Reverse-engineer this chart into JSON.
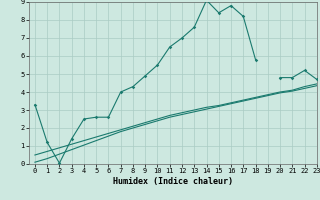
{
  "xlabel": "Humidex (Indice chaleur)",
  "background_color": "#cde8e0",
  "grid_color": "#aaccC4",
  "line_color": "#1a7a6e",
  "line1_x": [
    0,
    1,
    2,
    3,
    4,
    5,
    6,
    7,
    8,
    9,
    10,
    11,
    12,
    13,
    14,
    15,
    16,
    17,
    18,
    19,
    20,
    21,
    22,
    23
  ],
  "line1_y": [
    3.3,
    1.2,
    0.05,
    1.4,
    2.5,
    2.6,
    2.6,
    4.0,
    4.3,
    4.9,
    5.5,
    6.5,
    7.0,
    7.6,
    9.1,
    8.4,
    8.8,
    8.2,
    5.8,
    null,
    4.8,
    4.8,
    5.2,
    4.7
  ],
  "line2_x": [
    0,
    1,
    2,
    3,
    4,
    5,
    6,
    7,
    8,
    9,
    10,
    11,
    12,
    13,
    14,
    15,
    16,
    17,
    18,
    19,
    20,
    21,
    22,
    23
  ],
  "line2_y": [
    0.5,
    0.7,
    0.9,
    1.1,
    1.3,
    1.5,
    1.7,
    1.9,
    2.1,
    2.3,
    2.5,
    2.7,
    2.85,
    3.0,
    3.15,
    3.25,
    3.4,
    3.55,
    3.7,
    3.85,
    4.0,
    4.1,
    4.3,
    4.45
  ],
  "line3_x": [
    0,
    1,
    2,
    3,
    4,
    5,
    6,
    7,
    8,
    9,
    10,
    11,
    12,
    13,
    14,
    15,
    16,
    17,
    18,
    19,
    20,
    21,
    22,
    23
  ],
  "line3_y": [
    0.1,
    0.3,
    0.55,
    0.8,
    1.05,
    1.3,
    1.55,
    1.8,
    2.0,
    2.2,
    2.4,
    2.6,
    2.75,
    2.9,
    3.05,
    3.2,
    3.35,
    3.5,
    3.65,
    3.8,
    3.95,
    4.05,
    4.2,
    4.35
  ],
  "ylim": [
    0,
    9
  ],
  "xlim": [
    -0.5,
    23
  ],
  "yticks": [
    0,
    1,
    2,
    3,
    4,
    5,
    6,
    7,
    8,
    9
  ],
  "xticks": [
    0,
    1,
    2,
    3,
    4,
    5,
    6,
    7,
    8,
    9,
    10,
    11,
    12,
    13,
    14,
    15,
    16,
    17,
    18,
    19,
    20,
    21,
    22,
    23
  ]
}
